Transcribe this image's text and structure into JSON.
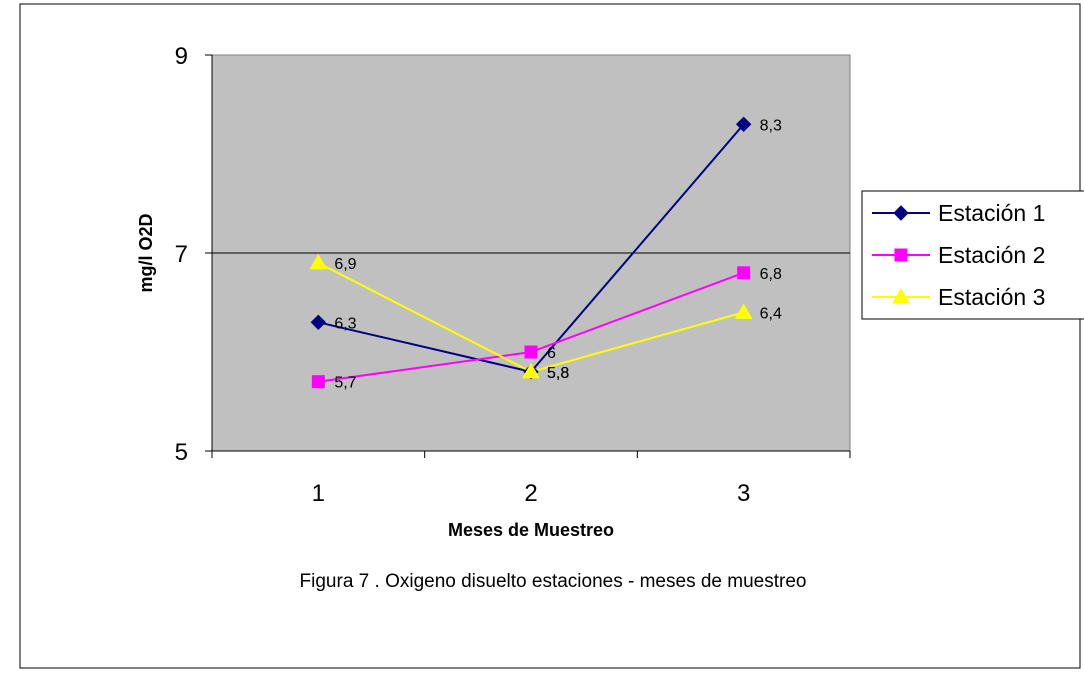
{
  "chart_data": {
    "type": "line",
    "title": "",
    "xlabel": "Meses de Muestreo",
    "ylabel": "mg/l O2D",
    "x": [
      1,
      2,
      3
    ],
    "x_tick_labels": [
      "1",
      "2",
      "3"
    ],
    "ylim": [
      5,
      9
    ],
    "y_ticks": [
      5,
      7,
      9
    ],
    "y_tick_labels": [
      "5",
      "7",
      "9"
    ],
    "grid": "horizontal major line at 7",
    "legend_position": "right",
    "plot_background": "#c0c0c0",
    "series": [
      {
        "name": "Estación 1",
        "values": [
          6.3,
          5.8,
          8.3
        ],
        "labels": [
          "6,3",
          "5,8",
          "8,3"
        ],
        "color": "#000080",
        "marker": "diamond"
      },
      {
        "name": "Estación 2",
        "values": [
          5.7,
          6.0,
          6.8
        ],
        "labels": [
          "5,7",
          "6",
          "6,8"
        ],
        "color": "#ff00ff",
        "marker": "square"
      },
      {
        "name": "Estación 3",
        "values": [
          6.9,
          5.8,
          6.4
        ],
        "labels": [
          "6,9",
          "5,8",
          "6,4"
        ],
        "color": "#ffff00",
        "marker": "triangle"
      }
    ]
  },
  "caption": "Figura 7 . Oxigeno disuelto estaciones - meses de muestreo"
}
